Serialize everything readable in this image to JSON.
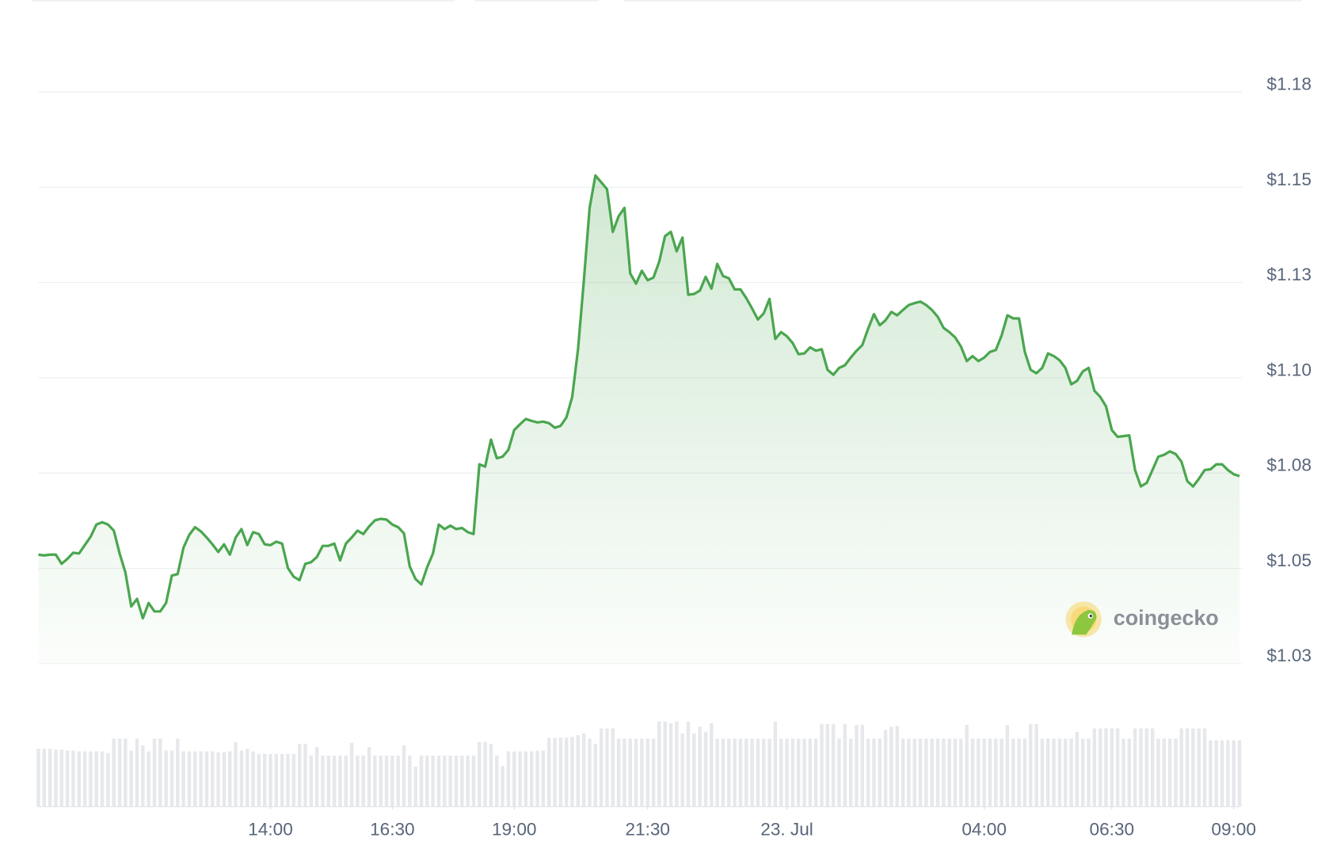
{
  "chart_data": {
    "type": "line",
    "color": "#4aa64f",
    "brand": "coingecko",
    "xlim": [
      0,
      207
    ],
    "xticks": [
      {
        "value": 40,
        "label": "14:00"
      },
      {
        "value": 61,
        "label": "16:30"
      },
      {
        "value": 82,
        "label": "19:00"
      },
      {
        "value": 105,
        "label": "21:30"
      },
      {
        "value": 129,
        "label": "23. Jul"
      },
      {
        "value": 163,
        "label": "04:00"
      },
      {
        "value": 185,
        "label": "06:30"
      },
      {
        "value": 206,
        "label": "09:00"
      }
    ],
    "ylim": [
      1.025,
      1.175
    ],
    "yticks": [
      {
        "value": 1.025,
        "label": "$1.03"
      },
      {
        "value": 1.05,
        "label": "$1.05"
      },
      {
        "value": 1.075,
        "label": "$1.08"
      },
      {
        "value": 1.1,
        "label": "$1.10"
      },
      {
        "value": 1.125,
        "label": "$1.13"
      },
      {
        "value": 1.15,
        "label": "$1.15"
      },
      {
        "value": 1.175,
        "label": "$1.18"
      }
    ],
    "grid": true,
    "values": [
      1.0536,
      1.0534,
      1.0536,
      1.0536,
      1.0512,
      1.0525,
      1.0541,
      1.0539,
      1.0561,
      1.0583,
      1.0615,
      1.0621,
      1.0615,
      1.0599,
      1.0539,
      1.0489,
      1.04,
      1.042,
      1.0369,
      1.0409,
      1.0387,
      1.0387,
      1.0409,
      1.0481,
      1.0485,
      1.0554,
      1.0588,
      1.0608,
      1.0597,
      1.0581,
      1.0563,
      1.0543,
      1.0563,
      1.0536,
      1.0581,
      1.0603,
      1.0561,
      1.0595,
      1.059,
      1.0563,
      1.0561,
      1.057,
      1.0565,
      1.0501,
      1.0478,
      1.0469,
      1.0512,
      1.0516,
      1.053,
      1.0559,
      1.0559,
      1.0565,
      1.0521,
      1.0565,
      1.0581,
      1.0599,
      1.059,
      1.061,
      1.0626,
      1.063,
      1.0628,
      1.0615,
      1.0608,
      1.0592,
      1.0505,
      1.0472,
      1.0458,
      1.0503,
      1.0539,
      1.0615,
      1.0603,
      1.0612,
      1.0603,
      1.0606,
      1.0595,
      1.059,
      1.0773,
      1.0767,
      1.0838,
      1.0789,
      1.0793,
      1.0811,
      1.0863,
      1.0878,
      1.0892,
      1.0887,
      1.0883,
      1.0885,
      1.0881,
      1.0869,
      1.0874,
      1.0896,
      1.095,
      1.1075,
      1.1254,
      1.1446,
      1.1531,
      1.1513,
      1.1495,
      1.1383,
      1.1424,
      1.1446,
      1.1274,
      1.1247,
      1.1281,
      1.1256,
      1.1263,
      1.1305,
      1.1372,
      1.1383,
      1.1332,
      1.1368,
      1.1218,
      1.122,
      1.1229,
      1.1265,
      1.1234,
      1.1299,
      1.1267,
      1.1261,
      1.1232,
      1.1232,
      1.1209,
      1.1182,
      1.1153,
      1.1169,
      1.1207,
      1.1102,
      1.112,
      1.1109,
      1.1091,
      1.1062,
      1.1064,
      1.108,
      1.1071,
      1.1075,
      1.1021,
      1.1008,
      1.1026,
      1.1033,
      1.1053,
      1.1071,
      1.1086,
      1.1129,
      1.1167,
      1.1138,
      1.1151,
      1.1173,
      1.1164,
      1.1178,
      1.1191,
      1.1196,
      1.12,
      1.1191,
      1.1178,
      1.116,
      1.1131,
      1.112,
      1.1106,
      1.1082,
      1.1044,
      1.1057,
      1.1044,
      1.1053,
      1.1068,
      1.1073,
      1.1111,
      1.1164,
      1.1156,
      1.1156,
      1.1068,
      1.1021,
      1.1012,
      1.1026,
      1.1064,
      1.1057,
      1.1046,
      1.1026,
      1.0983,
      1.0992,
      1.1017,
      1.1026,
      1.0966,
      1.095,
      1.0925,
      1.0863,
      1.0845,
      1.0847,
      1.0849,
      1.0758,
      1.0715,
      1.0724,
      1.0758,
      1.0793,
      1.0798,
      1.0807,
      1.08,
      1.078,
      1.0729,
      1.0715,
      1.0735,
      1.0758,
      1.076,
      1.0773,
      1.0773,
      1.0758,
      1.0747,
      1.0742
    ],
    "volume": [
      68,
      68,
      68,
      67,
      67,
      66,
      66,
      65,
      65,
      65,
      65,
      65,
      63,
      80,
      80,
      80,
      66,
      80,
      72,
      65,
      80,
      80,
      66,
      66,
      80,
      65,
      65,
      65,
      65,
      65,
      65,
      64,
      64,
      65,
      76,
      66,
      68,
      65,
      62,
      62,
      62,
      62,
      62,
      62,
      62,
      74,
      74,
      60,
      70,
      60,
      60,
      60,
      60,
      60,
      75,
      60,
      60,
      70,
      60,
      60,
      60,
      60,
      60,
      72,
      60,
      47,
      60,
      60,
      60,
      60,
      60,
      60,
      60,
      60,
      60,
      60,
      76,
      76,
      74,
      60,
      48,
      65,
      65,
      65,
      65,
      65,
      66,
      66,
      81,
      81,
      81,
      81,
      82,
      84,
      86,
      80,
      74,
      92,
      92,
      92,
      80,
      80,
      80,
      80,
      80,
      80,
      80,
      100,
      100,
      98,
      100,
      86,
      100,
      86,
      94,
      88,
      98,
      80,
      80,
      80,
      80,
      80,
      80,
      80,
      80,
      80,
      80,
      100,
      80,
      80,
      80,
      80,
      80,
      80,
      80,
      97,
      97,
      97,
      80,
      97,
      80,
      96,
      96,
      80,
      80,
      80,
      90,
      94,
      95,
      80,
      80,
      80,
      80,
      80,
      80,
      80,
      80,
      80,
      80,
      80,
      96,
      80,
      80,
      80,
      80,
      80,
      80,
      96,
      80,
      80,
      80,
      97,
      97,
      80,
      80,
      80,
      80,
      80,
      80,
      88,
      80,
      80,
      92,
      92,
      92,
      92,
      92,
      80,
      80,
      92,
      92,
      92,
      92,
      80,
      80,
      80,
      80,
      92,
      92,
      92,
      92,
      92,
      78,
      78,
      78,
      78,
      78,
      78
    ]
  }
}
